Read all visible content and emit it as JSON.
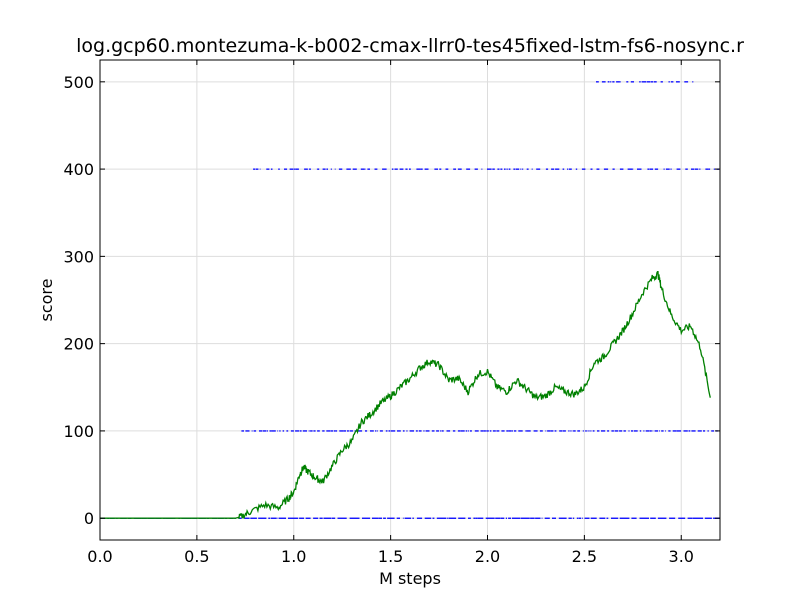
{
  "chart_data": {
    "type": "line",
    "title": "log.gcp60.montezuma-k-b002-cmax-llrr0-tes45fixed-lstm-fs6-nosync.r",
    "xlabel": "M steps",
    "ylabel": "score",
    "xlim": [
      0.0,
      3.2
    ],
    "ylim": [
      -25,
      525
    ],
    "grid": true,
    "x_ticks": [
      "0.0",
      "0.5",
      "1.0",
      "1.5",
      "2.0",
      "2.5",
      "3.0"
    ],
    "y_ticks": [
      "0",
      "100",
      "200",
      "300",
      "400",
      "500"
    ],
    "colors": {
      "episode_scores": "#0000ff",
      "moving_average": "#008000"
    },
    "series": [
      {
        "kind": "scatter",
        "role": "episode_scores",
        "levels": [
          {
            "y": 0,
            "x_ranges": [
              [
                0.0,
                3.2
              ]
            ]
          },
          {
            "y": 100,
            "x_ranges": [
              [
                0.73,
                3.2
              ]
            ]
          },
          {
            "y": 400,
            "x_ranges": [
              [
                0.79,
                3.2
              ]
            ]
          },
          {
            "y": 500,
            "x_ranges": [
              [
                2.56,
                3.08
              ]
            ]
          }
        ]
      },
      {
        "kind": "line",
        "role": "moving_average",
        "x": [
          0.0,
          0.5,
          0.7,
          0.73,
          0.78,
          0.85,
          0.92,
          0.97,
          1.0,
          1.03,
          1.05,
          1.08,
          1.12,
          1.15,
          1.2,
          1.25,
          1.3,
          1.35,
          1.4,
          1.45,
          1.5,
          1.55,
          1.6,
          1.65,
          1.7,
          1.75,
          1.8,
          1.85,
          1.9,
          1.95,
          2.0,
          2.05,
          2.1,
          2.15,
          2.2,
          2.25,
          2.3,
          2.35,
          2.4,
          2.45,
          2.5,
          2.55,
          2.6,
          2.65,
          2.7,
          2.75,
          2.8,
          2.85,
          2.88,
          2.9,
          2.95,
          3.0,
          3.05,
          3.1,
          3.15
        ],
        "y": [
          0,
          0,
          0,
          2,
          8,
          15,
          12,
          22,
          30,
          50,
          58,
          52,
          45,
          42,
          60,
          78,
          88,
          110,
          120,
          132,
          140,
          150,
          160,
          172,
          180,
          175,
          158,
          160,
          145,
          165,
          168,
          150,
          145,
          158,
          148,
          138,
          140,
          150,
          145,
          142,
          150,
          178,
          185,
          200,
          215,
          235,
          258,
          275,
          280,
          262,
          232,
          215,
          220,
          195,
          138
        ]
      }
    ]
  }
}
